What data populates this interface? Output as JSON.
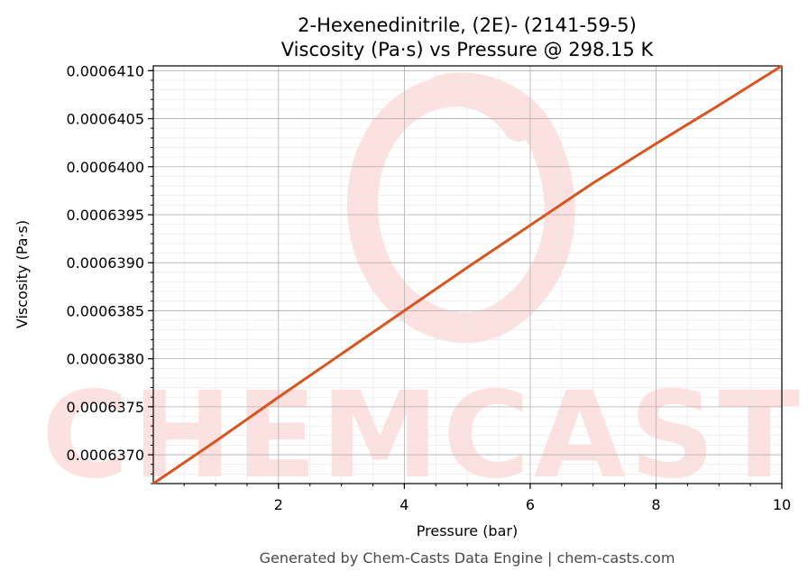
{
  "chart_data": {
    "type": "line",
    "title": "2-Hexenedinitrile, (2E)- (2141-59-5)",
    "subtitle": "Viscosity (Pa·s) vs Pressure @ 298.15 K",
    "xlabel": "Pressure (bar)",
    "ylabel": "Viscosity (Pa·s)",
    "xlim": [
      0.01,
      10
    ],
    "ylim": [
      0.0006367,
      0.00064105
    ],
    "xticks": [
      2,
      4,
      6,
      8,
      10
    ],
    "xtick_labels": [
      "2",
      "4",
      "6",
      "8",
      "10"
    ],
    "yticks": [
      0.000637,
      0.0006375,
      0.000638,
      0.0006385,
      0.000639,
      0.0006395,
      0.00064,
      0.0006405,
      0.000641
    ],
    "ytick_labels": [
      "0.0006370",
      "0.0006375",
      "0.0006380",
      "0.0006385",
      "0.0006390",
      "0.0006395",
      "0.0006400",
      "0.0006405",
      "0.0006410"
    ],
    "grid": true,
    "series": [
      {
        "color": "#d9541e",
        "x": [
          0.01,
          1,
          2,
          3,
          4,
          5,
          6,
          7,
          8,
          9,
          10
        ],
        "y": [
          0.0006367,
          0.00063714,
          0.0006376,
          0.00063805,
          0.0006385,
          0.00063895,
          0.00063939,
          0.00063983,
          0.00064024,
          0.00064064,
          0.00064105
        ]
      }
    ]
  },
  "footer": "Generated by Chem-Casts Data Engine | chem-casts.com",
  "watermark": {
    "text": "CHEMCASTS",
    "color": "#fde1e1"
  }
}
